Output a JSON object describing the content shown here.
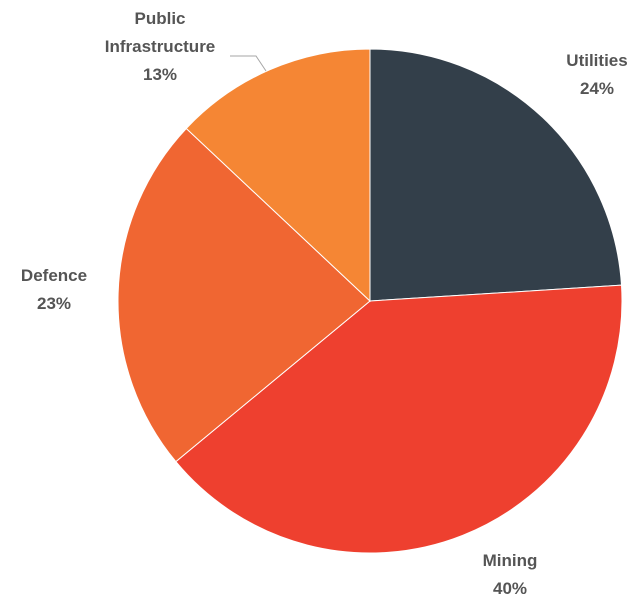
{
  "chart_data": {
    "type": "pie",
    "title": "",
    "legend": "none",
    "start_angle": "12 o'clock, clockwise",
    "slices": [
      {
        "name": "Utilities",
        "value": 24,
        "label": "24%",
        "color": "#333f4a"
      },
      {
        "name": "Mining",
        "value": 40,
        "label": "40%",
        "color": "#ee402f"
      },
      {
        "name": "Defence",
        "value": 23,
        "label": "23%",
        "color": "#f06632"
      },
      {
        "name": "Public Infrastructure",
        "name_lines": [
          "Public",
          "Infrastructure"
        ],
        "value": 13,
        "label": "13%",
        "color": "#f58634"
      }
    ]
  },
  "colors": {
    "label_text": "#555555",
    "leader_line": "#a6a6a6",
    "background": "#ffffff"
  }
}
